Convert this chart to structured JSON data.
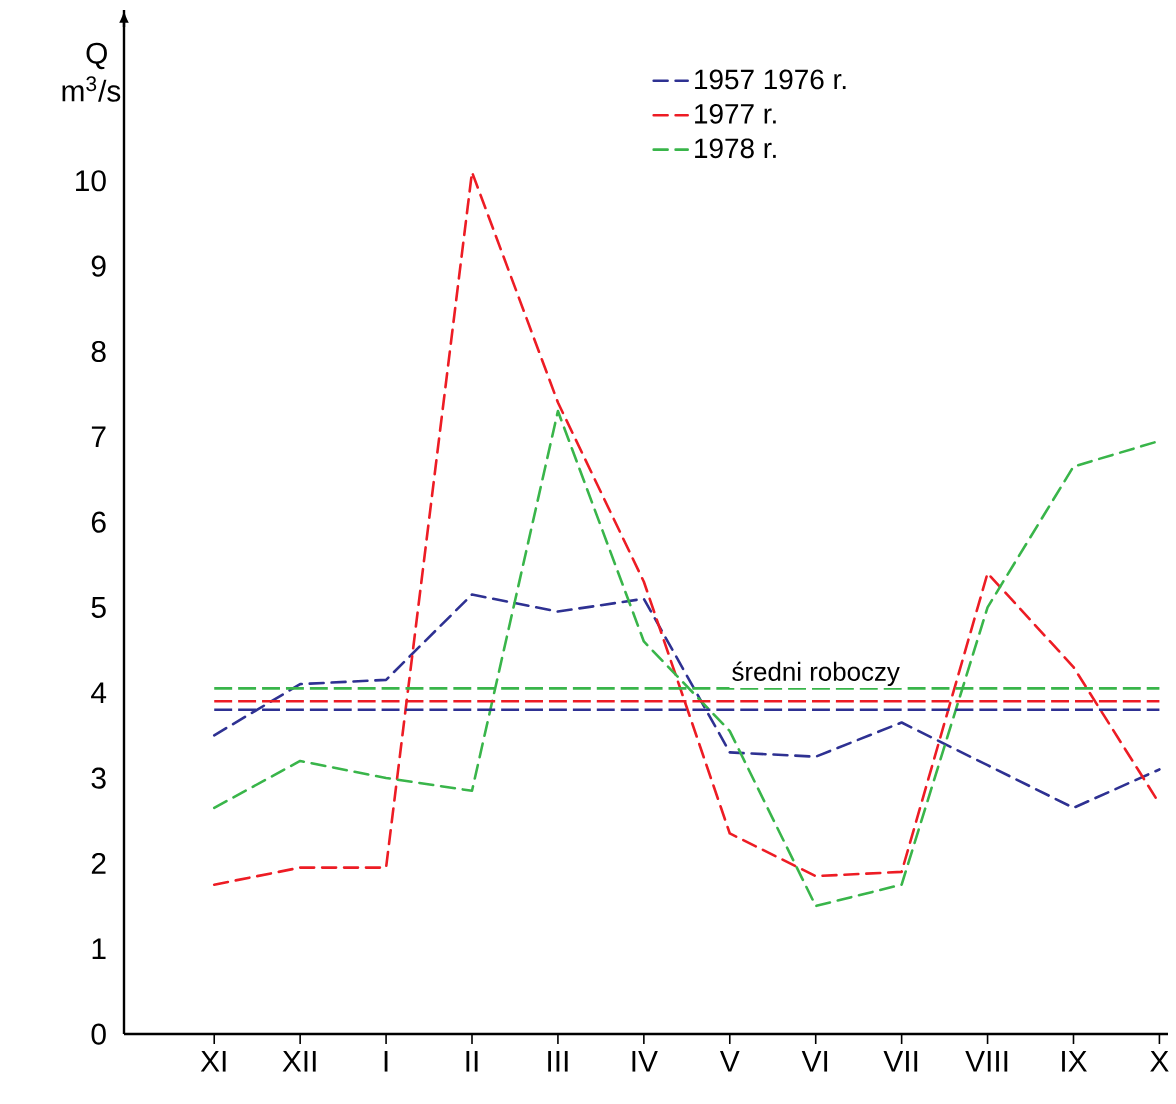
{
  "chart_data": {
    "type": "line",
    "ylabel": "Q m$^{3}$/s",
    "categories": [
      "XI",
      "XII",
      "I",
      "II",
      "III",
      "IV",
      "V",
      "VI",
      "VII",
      "VIII",
      "IX",
      "X"
    ],
    "series": [
      {
        "name": "1957  1976 r.",
        "color": "#2e3192",
        "values": [
          3.5,
          4.1,
          4.15,
          5.15,
          4.95,
          5.1,
          3.3,
          3.25,
          3.65,
          3.15,
          2.65,
          3.1
        ]
      },
      {
        "name": "1977 r.",
        "color": "#ed1c24",
        "values": [
          1.75,
          1.95,
          1.95,
          10.1,
          7.4,
          5.3,
          2.35,
          1.85,
          1.9,
          5.4,
          4.3,
          2.7
        ]
      },
      {
        "name": "1978 r.",
        "color": "#39b54a",
        "values": [
          2.65,
          3.2,
          3.0,
          2.85,
          7.3,
          4.6,
          3.55,
          1.5,
          1.75,
          5.0,
          6.65,
          6.95
        ]
      }
    ],
    "ref_lines": [
      {
        "axis": "y",
        "value": 3.8,
        "color": "#2e3192",
        "line_style": "dashed"
      },
      {
        "axis": "y",
        "value": 3.9,
        "color": "#ed1c24",
        "line_style": "dashed"
      },
      {
        "axis": "y",
        "value": 4.05,
        "color": "#39b54a",
        "line_style": "dashed"
      }
    ],
    "annotations": [
      {
        "text": "średni roboczy",
        "x": "VI",
        "y": 4.05
      }
    ],
    "ylim": [
      0,
      12
    ],
    "yticks": [
      0,
      1,
      2,
      3,
      4,
      5,
      6,
      7,
      8,
      9,
      10
    ],
    "legend": "top right",
    "line_style": "dashed",
    "marker": "none",
    "grid": false
  }
}
